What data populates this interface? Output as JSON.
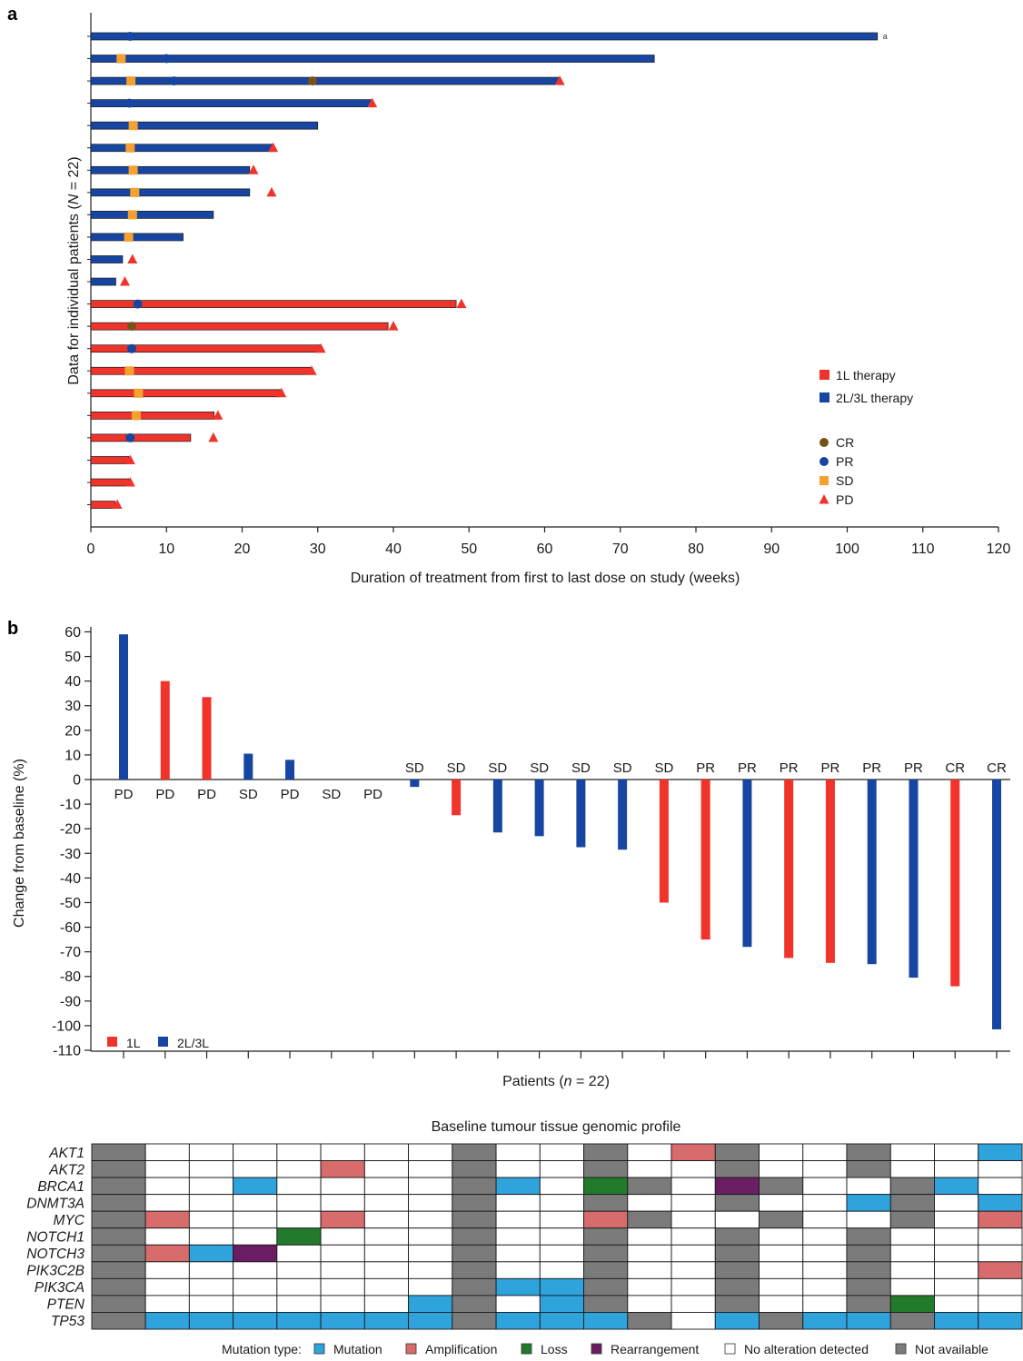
{
  "colors": {
    "first_line": "#f0342c",
    "second_line": "#1746a2",
    "CR": "#7a5218",
    "PR": "#1746a2",
    "SD": "#f5a131",
    "PD": "#f0342c",
    "mutation": "#2ea3dc",
    "amplification": "#d86c6c",
    "loss": "#227a2b",
    "rearrangement": "#6a1d63",
    "none": "#ffffff",
    "na": "#7b7b7b"
  },
  "chart_data": [
    {
      "panel": "a",
      "type": "bar",
      "orientation": "horizontal",
      "ylabel": "Data for individual patients (N = 22)",
      "ylabel_parts": [
        "Data for individual patients (",
        "N",
        " = 22)"
      ],
      "xlabel": "Duration of treatment from first to last dose on study (weeks)",
      "xlim": [
        0,
        120
      ],
      "xticks": [
        0,
        10,
        20,
        30,
        40,
        50,
        60,
        70,
        80,
        90,
        100,
        110,
        120
      ],
      "legend": {
        "placement": "right",
        "therapy": [
          {
            "key": "1L",
            "label": "1L therapy"
          },
          {
            "key": "2L",
            "label": "2L/3L therapy"
          }
        ],
        "response": [
          {
            "key": "CR",
            "label": "CR"
          },
          {
            "key": "PR",
            "label": "PR"
          },
          {
            "key": "SD",
            "label": "SD"
          },
          {
            "key": "PD",
            "label": "PD"
          }
        ]
      },
      "patients": [
        {
          "therapy": "2L",
          "duration": 104,
          "note": "a",
          "markers": [
            {
              "r": "PR",
              "w": 5.2
            }
          ]
        },
        {
          "therapy": "2L",
          "duration": 74.5,
          "markers": [
            {
              "r": "SD",
              "w": 4
            },
            {
              "r": "PR",
              "w": 10
            }
          ]
        },
        {
          "therapy": "2L",
          "duration": 62,
          "markers": [
            {
              "r": "SD",
              "w": 5.3
            },
            {
              "r": "PR",
              "w": 11
            },
            {
              "r": "CR",
              "w": 29.3
            },
            {
              "r": "PD",
              "w": 62
            }
          ]
        },
        {
          "therapy": "2L",
          "duration": 37,
          "markers": [
            {
              "r": "PR",
              "w": 5.1
            },
            {
              "r": "PD",
              "w": 37.2
            }
          ]
        },
        {
          "therapy": "2L",
          "duration": 30,
          "markers": [
            {
              "r": "SD",
              "w": 5.6
            }
          ]
        },
        {
          "therapy": "2L",
          "duration": 24,
          "markers": [
            {
              "r": "SD",
              "w": 5.2
            },
            {
              "r": "PD",
              "w": 24.1
            }
          ]
        },
        {
          "therapy": "2L",
          "duration": 21,
          "markers": [
            {
              "r": "SD",
              "w": 5.6
            },
            {
              "r": "PD",
              "w": 21.5
            }
          ]
        },
        {
          "therapy": "2L",
          "duration": 21,
          "markers": [
            {
              "r": "SD",
              "w": 5.8
            },
            {
              "r": "PD",
              "w": 23.9
            }
          ]
        },
        {
          "therapy": "2L",
          "duration": 16.2,
          "markers": [
            {
              "r": "SD",
              "w": 5.5
            }
          ]
        },
        {
          "therapy": "2L",
          "duration": 12.2,
          "markers": [
            {
              "r": "SD",
              "w": 5
            }
          ]
        },
        {
          "therapy": "2L",
          "duration": 4.2,
          "markers": [
            {
              "r": "PD",
              "w": 5.5
            }
          ]
        },
        {
          "therapy": "2L",
          "duration": 3.3,
          "markers": [
            {
              "r": "PD",
              "w": 4.5
            }
          ]
        },
        {
          "therapy": "1L",
          "duration": 48.3,
          "markers": [
            {
              "r": "PR",
              "w": 6.2
            },
            {
              "r": "PD",
              "w": 49
            }
          ]
        },
        {
          "therapy": "1L",
          "duration": 39.3,
          "markers": [
            {
              "r": "CR",
              "w": 5.4
            },
            {
              "r": "PD",
              "w": 40
            }
          ]
        },
        {
          "therapy": "1L",
          "duration": 30.3,
          "markers": [
            {
              "r": "PR",
              "w": 5.4
            },
            {
              "r": "PD",
              "w": 30.4
            }
          ]
        },
        {
          "therapy": "1L",
          "duration": 29.2,
          "markers": [
            {
              "r": "SD",
              "w": 5.1
            },
            {
              "r": "PD",
              "w": 29.2
            }
          ]
        },
        {
          "therapy": "1L",
          "duration": 25,
          "markers": [
            {
              "r": "SD",
              "w": 6.3
            },
            {
              "r": "PD",
              "w": 25.2
            }
          ]
        },
        {
          "therapy": "1L",
          "duration": 16.3,
          "markers": [
            {
              "r": "SD",
              "w": 6
            },
            {
              "r": "PD",
              "w": 16.8
            }
          ]
        },
        {
          "therapy": "1L",
          "duration": 13.2,
          "markers": [
            {
              "r": "PR",
              "w": 5.2
            },
            {
              "r": "PD",
              "w": 16.2
            }
          ]
        },
        {
          "therapy": "1L",
          "duration": 5,
          "markers": [
            {
              "r": "PD",
              "w": 5.2
            }
          ]
        },
        {
          "therapy": "1L",
          "duration": 5,
          "markers": [
            {
              "r": "PD",
              "w": 5.2
            }
          ]
        },
        {
          "therapy": "1L",
          "duration": 3.2,
          "markers": [
            {
              "r": "PD",
              "w": 3.5
            }
          ]
        }
      ]
    },
    {
      "panel": "b",
      "type": "bar",
      "ylabel": "Change from baseline (%)",
      "xlabel": "Patients (n = 22)",
      "xlabel_parts": [
        "Patients (",
        "n",
        " = 22)"
      ],
      "ylim": [
        -110,
        60
      ],
      "yticks": [
        60,
        50,
        40,
        30,
        20,
        10,
        0,
        -10,
        -20,
        -30,
        -40,
        -50,
        -60,
        -70,
        -80,
        -90,
        -100,
        -110
      ],
      "legend": {
        "placement": "bottom-left",
        "items": [
          {
            "key": "1L",
            "label": "1L"
          },
          {
            "key": "2L",
            "label": "2L/3L"
          }
        ]
      },
      "patients": [
        {
          "therapy": "2L",
          "value": 59,
          "response": "PD"
        },
        {
          "therapy": "1L",
          "value": 40,
          "response": "PD"
        },
        {
          "therapy": "1L",
          "value": 33.5,
          "response": "PD"
        },
        {
          "therapy": "2L",
          "value": 10.5,
          "response": "SD"
        },
        {
          "therapy": "2L",
          "value": 8,
          "response": "PD"
        },
        {
          "therapy": "2L",
          "value": 0,
          "response": "SD"
        },
        {
          "therapy": "2L",
          "value": 0,
          "response": "PD"
        },
        {
          "therapy": "2L",
          "value": -3,
          "response": "SD"
        },
        {
          "therapy": "1L",
          "value": -14.5,
          "response": "SD"
        },
        {
          "therapy": "2L",
          "value": -21.5,
          "response": "SD"
        },
        {
          "therapy": "2L",
          "value": -23,
          "response": "SD"
        },
        {
          "therapy": "2L",
          "value": -27.5,
          "response": "SD"
        },
        {
          "therapy": "2L",
          "value": -28.5,
          "response": "SD"
        },
        {
          "therapy": "1L",
          "value": -50,
          "response": "SD"
        },
        {
          "therapy": "1L",
          "value": -65,
          "response": "PR"
        },
        {
          "therapy": "2L",
          "value": -68,
          "response": "PR"
        },
        {
          "therapy": "1L",
          "value": -72.5,
          "response": "PR"
        },
        {
          "therapy": "1L",
          "value": -74.5,
          "response": "PR"
        },
        {
          "therapy": "2L",
          "value": -75,
          "response": "PR"
        },
        {
          "therapy": "2L",
          "value": -80.5,
          "response": "PR"
        },
        {
          "therapy": "1L",
          "value": -84,
          "response": "CR"
        },
        {
          "therapy": "2L",
          "value": -101.5,
          "response": "CR"
        }
      ]
    },
    {
      "panel": "genomic",
      "type": "heatmap",
      "title": "Baseline tumour tissue genomic profile",
      "genes": [
        "AKT1",
        "AKT2",
        "BRCA1",
        "DNMT3A",
        "MYC",
        "NOTCH1",
        "NOTCH3",
        "PIK3C2B",
        "PIK3CA",
        "PTEN",
        "TP53"
      ],
      "categories": {
        "M": "mutation",
        "A": "amplification",
        "L": "loss",
        "R": "rearrangement",
        "N": "none",
        "X": "na"
      },
      "rows": [
        "XNNNNNNNXNNXNAXNNXNNM",
        "XNNNNANNXNNXNNXNNXNNN",
        "XNNMNNNNXMNLXNRXNNXMN",
        "XNNNNNNNXNNXNNXNNMXNM",
        "XANNNANNXNNAXNNXNNXNA",
        "XNNNLNNNXNNXNNXNNXNNN",
        "XAMRNNNNXNNXNNXNNXNNN",
        "XNNNNNNNXNNXNNXNNXNNA",
        "XNNNNNNNXMMXNNXNNXNNN",
        "XNNNNNNMXNMXNNXNNXLNN",
        "XMMMMMMMXMMMXNMXMMXMM"
      ],
      "legend": {
        "title": "Mutation type:",
        "placement": "bottom",
        "items": [
          {
            "key": "mutation",
            "label": "Mutation"
          },
          {
            "key": "amplification",
            "label": "Amplification"
          },
          {
            "key": "loss",
            "label": "Loss"
          },
          {
            "key": "rearrangement",
            "label": "Rearrangement"
          },
          {
            "key": "none",
            "label": "No alteration detected"
          },
          {
            "key": "na",
            "label": "Not available"
          }
        ]
      }
    }
  ],
  "panel_labels": [
    "a",
    "b"
  ]
}
